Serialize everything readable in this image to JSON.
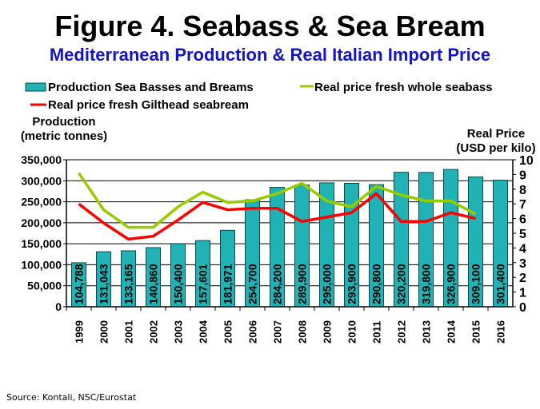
{
  "chart_data": {
    "type": "bar",
    "title": "Figure 4. Seabass & Sea Bream",
    "subtitle": "Mediterranean Production & Real Italian Import Price",
    "categories": [
      "1999",
      "2000",
      "2001",
      "2002",
      "2003",
      "2004",
      "2005",
      "2006",
      "2007",
      "2008",
      "2009",
      "2010",
      "2011",
      "2012",
      "2013",
      "2014",
      "2015",
      "2016"
    ],
    "series": [
      {
        "name": "Production Sea Basses and Breams",
        "type": "bar",
        "axis": "left",
        "color": "#20b2b4",
        "values": [
          104788,
          131043,
          133165,
          140860,
          150400,
          157601,
          181971,
          254700,
          284200,
          289900,
          295000,
          293900,
          290800,
          320200,
          319800,
          326900,
          309100,
          301400
        ],
        "labels": [
          "104,788",
          "131,043",
          "133,165",
          "140,860",
          "150,400",
          "157,601",
          "181,971",
          "254,700",
          "284,200",
          "289,900",
          "295,000",
          "293,900",
          "290,800",
          "320,200",
          "319,800",
          "326,900",
          "309,100",
          "301,400"
        ]
      },
      {
        "name": "Real price fresh whole seabass",
        "type": "line",
        "axis": "right",
        "color": "#99cc00",
        "values": [
          9.1,
          6.6,
          5.4,
          5.4,
          6.8,
          7.8,
          7.1,
          7.2,
          7.7,
          8.4,
          7.2,
          6.8,
          8.2,
          7.6,
          7.2,
          7.2,
          6.3,
          null
        ]
      },
      {
        "name": "Real price fresh Gilthead seabream",
        "type": "line",
        "axis": "right",
        "color": "#ff0000",
        "values": [
          7.0,
          5.7,
          4.6,
          4.8,
          5.9,
          7.1,
          6.6,
          6.7,
          6.7,
          5.8,
          6.1,
          6.4,
          7.7,
          5.8,
          5.8,
          6.4,
          6.0,
          null
        ]
      }
    ],
    "ylabel_left": [
      "Production",
      "(metric tonnes)"
    ],
    "ylabel_right": [
      "Real Price",
      "(USD per kilo)"
    ],
    "ylim_left": [
      0,
      350000
    ],
    "ylim_right": [
      0,
      10
    ],
    "yticks_left": [
      "0",
      "50,000",
      "100,000",
      "150,000",
      "200,000",
      "250,000",
      "300,000",
      "350,000"
    ],
    "yticks_right": [
      "0",
      "1",
      "2",
      "3",
      "4",
      "5",
      "6",
      "7",
      "8",
      "9",
      "10"
    ],
    "grid": true,
    "legend_position": "top"
  },
  "source": "Source: Kontali, NSC/Eurostat"
}
